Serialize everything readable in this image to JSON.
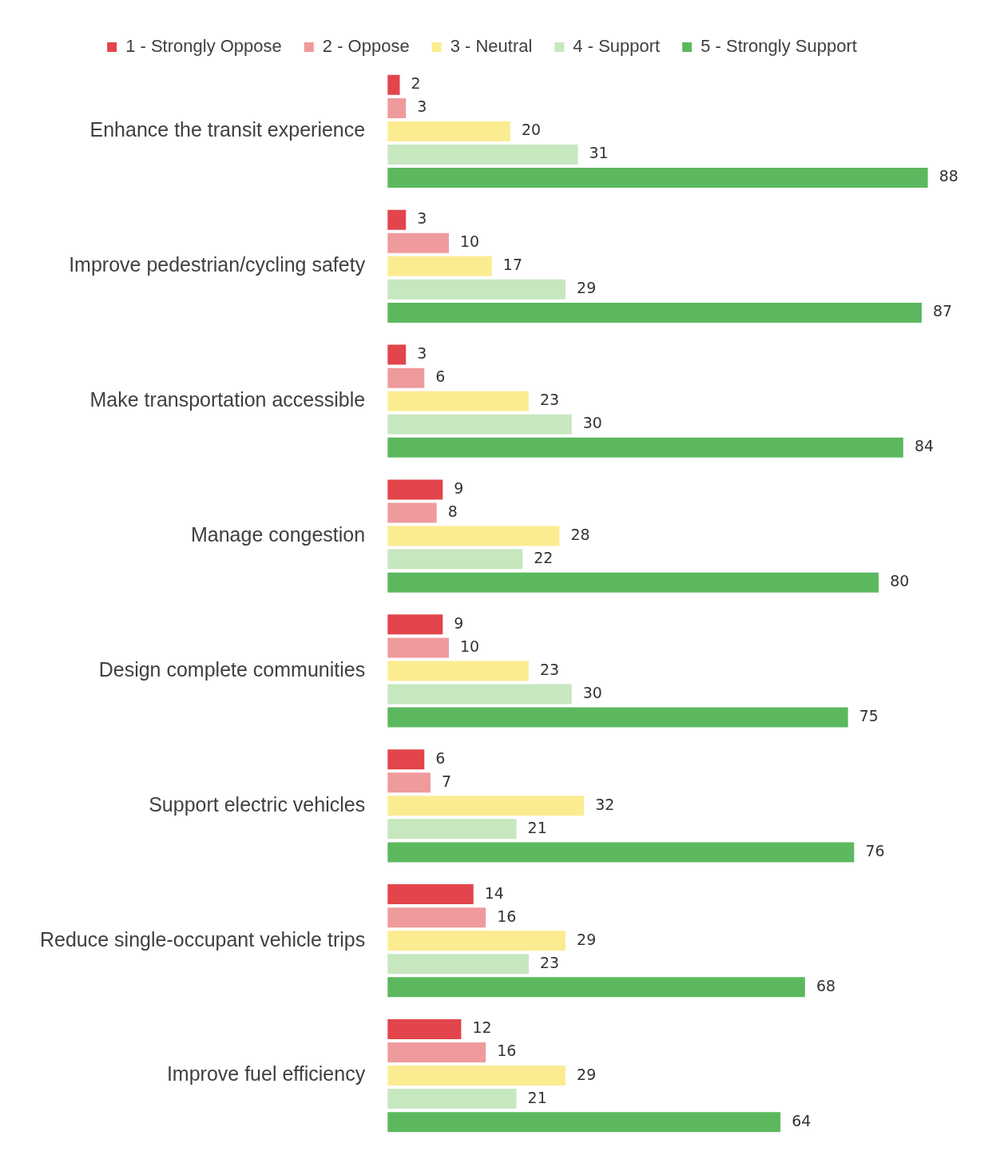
{
  "chart_data": {
    "type": "bar",
    "orientation": "horizontal",
    "categories": [
      "Enhance the transit experience",
      "Improve pedestrian/cycling safety",
      "Make transportation accessible",
      "Manage congestion",
      "Design complete communities",
      "Support electric vehicles",
      "Reduce single-occupant vehicle trips",
      "Improve fuel efficiency"
    ],
    "series": [
      {
        "name": "1 - Strongly Oppose",
        "color": "#e2454b",
        "values": [
          2,
          3,
          3,
          9,
          9,
          6,
          14,
          12
        ]
      },
      {
        "name": "2 - Oppose",
        "color": "#ef9a9c",
        "values": [
          3,
          10,
          6,
          8,
          10,
          7,
          16,
          16
        ]
      },
      {
        "name": "3 - Neutral",
        "color": "#fbec91",
        "values": [
          20,
          17,
          23,
          28,
          23,
          32,
          29,
          29
        ]
      },
      {
        "name": "4 - Support",
        "color": "#c7e7bf",
        "values": [
          31,
          29,
          30,
          22,
          30,
          21,
          23,
          21
        ]
      },
      {
        "name": "5 - Strongly Support",
        "color": "#5cb85f",
        "values": [
          88,
          87,
          84,
          80,
          75,
          76,
          68,
          64
        ]
      }
    ],
    "tick_labels": "y",
    "data_labels": true,
    "legend": "top"
  }
}
